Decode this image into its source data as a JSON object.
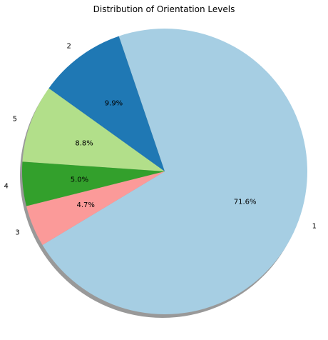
{
  "chart_data": {
    "type": "pie",
    "title": "Distribution of Orientation Levels",
    "categories": [
      "1",
      "2",
      "5",
      "4",
      "3"
    ],
    "values": [
      71.6,
      9.9,
      8.8,
      5.0,
      4.7
    ],
    "percent_labels": [
      "71.6%",
      "9.9%",
      "8.8%",
      "5.0%",
      "4.7%"
    ],
    "colors": [
      "#a6cee3",
      "#1f78b4",
      "#b2df8a",
      "#33a02c",
      "#fb9a99"
    ],
    "shadow": true,
    "legend": "none"
  }
}
